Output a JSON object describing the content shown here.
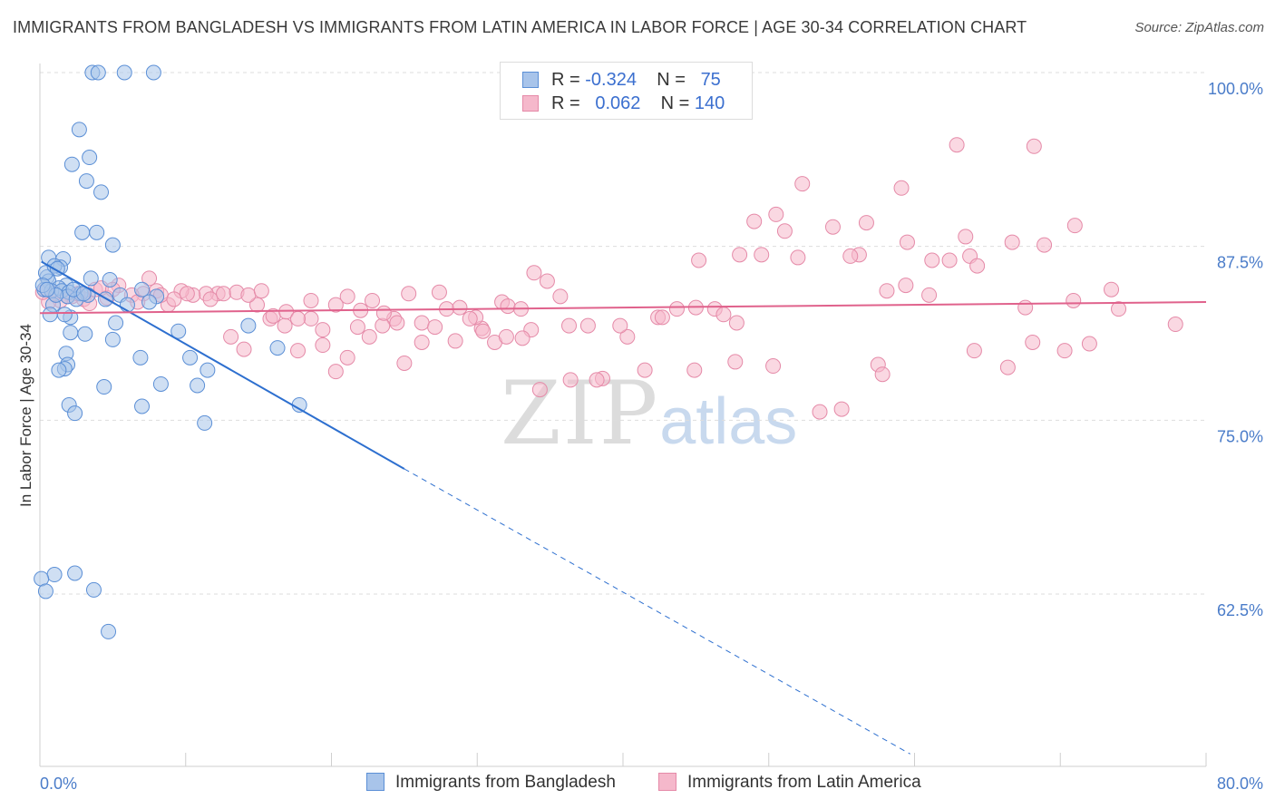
{
  "title": "IMMIGRANTS FROM BANGLADESH VS IMMIGRANTS FROM LATIN AMERICA IN LABOR FORCE | AGE 30-34 CORRELATION CHART",
  "source": "Source: ZipAtlas.com",
  "watermark": {
    "zip": "ZIP",
    "atlas": "atlas"
  },
  "legend": {
    "rows": [
      {
        "r_label": "R =",
        "r_value": "-0.324",
        "n_label": "N =",
        "n_value": "75"
      },
      {
        "r_label": "R =",
        "r_value": "0.062",
        "n_label": "N =",
        "n_value": "140"
      }
    ]
  },
  "colors": {
    "blue_fill": "#a8c4ea",
    "blue_stroke": "#5b8fd6",
    "blue_line": "#2d6fcf",
    "pink_fill": "#f5b8cb",
    "pink_stroke": "#e58aa8",
    "pink_line": "#e0628c",
    "grid": "#dddddd",
    "tick_text": "#4a7cc9"
  },
  "chart_data": {
    "type": "scatter",
    "title": "IMMIGRANTS FROM BANGLADESH VS IMMIGRANTS FROM LATIN AMERICA IN LABOR FORCE | AGE 30-34 CORRELATION CHART",
    "xlabel": "",
    "ylabel": "In Labor Force | Age 30-34",
    "xlim": [
      0,
      80
    ],
    "ylim": [
      50,
      102
    ],
    "x_tick_labels": [
      "0.0%",
      "80.0%"
    ],
    "y_ticks": [
      62.5,
      75.0,
      87.5,
      100.0
    ],
    "y_tick_labels": [
      "62.5%",
      "75.0%",
      "87.5%",
      "100.0%"
    ],
    "grid": true,
    "series": [
      {
        "name": "Immigrants from Bangladesh",
        "color": "#a8c4ea",
        "r": -0.324,
        "n": 75,
        "trend": {
          "x0": 0.1,
          "y0": 86.4,
          "x1": 25,
          "y1": 71.5,
          "dashed_to_x": 59.7,
          "dashed_to_y": 51
        },
        "x": [
          3.6,
          4.0,
          5.8,
          7.8,
          2.7,
          3.4,
          2.2,
          3.2,
          4.2,
          2.9,
          3.9,
          5.0,
          1.6,
          1.4,
          0.5,
          0.6,
          1.8,
          1.3,
          0.3,
          0.4,
          0.6,
          1.0,
          1.2,
          0.8,
          1.5,
          2.0,
          2.8,
          3.3,
          5.5,
          7.0,
          8.0,
          1.9,
          2.5,
          4.5,
          6.0,
          7.5,
          0.9,
          1.1,
          2.3,
          3.0,
          3.5,
          4.8,
          0.2,
          0.5,
          0.7,
          2.1,
          1.7,
          5.2,
          9.5,
          14.3,
          16.3,
          3.1,
          2.1,
          1.8,
          1.9,
          6.9,
          1.7,
          1.3,
          2.0,
          2.4,
          4.4,
          7.0,
          8.3,
          10.3,
          11.5,
          10.8,
          11.3,
          1.0,
          2.4,
          3.7,
          4.7,
          5.0,
          17.8,
          0.1,
          0.4
        ],
        "y": [
          100.0,
          100.0,
          100.0,
          100.0,
          95.9,
          93.9,
          93.4,
          92.2,
          91.4,
          88.5,
          88.5,
          87.6,
          86.6,
          86.0,
          85.3,
          85.0,
          84.7,
          84.5,
          84.4,
          85.6,
          86.7,
          86.1,
          85.9,
          84.3,
          84.3,
          84.2,
          84.1,
          84.0,
          84.0,
          84.4,
          83.9,
          83.9,
          83.7,
          83.7,
          83.3,
          83.5,
          83.3,
          84.0,
          84.4,
          84.1,
          85.2,
          85.1,
          84.7,
          84.4,
          82.6,
          82.4,
          82.6,
          82.0,
          81.4,
          81.8,
          80.2,
          81.2,
          81.3,
          79.8,
          79.0,
          79.5,
          78.7,
          78.6,
          76.1,
          75.5,
          77.4,
          76.0,
          77.6,
          79.5,
          78.6,
          77.5,
          74.8,
          63.9,
          64.0,
          62.8,
          59.8,
          80.8,
          76.1,
          63.6,
          62.7
        ]
      },
      {
        "name": "Immigrants from Latin America",
        "color": "#f5b8cb",
        "r": 0.062,
        "n": 140,
        "trend": {
          "x0": 0,
          "y0": 82.7,
          "x1": 80,
          "y1": 83.5
        },
        "x": [
          62.9,
          68.2,
          52.3,
          59.1,
          50.5,
          49.0,
          71.0,
          56.7,
          54.4,
          51.1,
          63.5,
          59.5,
          66.7,
          68.9,
          63.8,
          56.2,
          55.6,
          61.2,
          62.4,
          45.2,
          48.0,
          52.0,
          49.5,
          45.0,
          64.3,
          58.1,
          59.4,
          61.0,
          70.9,
          74.0,
          73.5,
          77.9,
          72.0,
          68.1,
          66.4,
          67.6,
          70.3,
          64.1,
          57.5,
          57.8,
          55.0,
          53.5,
          50.3,
          47.7,
          44.9,
          41.5,
          38.6,
          36.4,
          34.3,
          38.2,
          40.3,
          37.6,
          42.4,
          43.7,
          46.3,
          46.9,
          47.8,
          42.7,
          39.8,
          36.3,
          33.7,
          31.7,
          32.1,
          33.1,
          30.3,
          29.9,
          28.5,
          27.4,
          26.2,
          25.0,
          24.3,
          23.5,
          22.6,
          21.8,
          21.1,
          20.3,
          19.4,
          18.6,
          17.7,
          16.8,
          15.8,
          14.9,
          14.0,
          13.1,
          12.2,
          11.4,
          10.5,
          9.7,
          8.8,
          8.0,
          7.1,
          6.3,
          5.4,
          4.6,
          3.8,
          3.0,
          2.2,
          1.4,
          0.6,
          0.2,
          1.0,
          1.9,
          2.6,
          3.4,
          4.2,
          5.0,
          6.7,
          7.5,
          8.3,
          9.2,
          10.1,
          11.7,
          12.6,
          13.5,
          14.3,
          15.2,
          16.0,
          16.9,
          17.7,
          18.6,
          19.4,
          20.3,
          21.1,
          22.0,
          22.8,
          23.6,
          24.5,
          25.3,
          26.2,
          27.1,
          27.9,
          28.8,
          29.5,
          30.4,
          31.2,
          32.0,
          33.0,
          33.9,
          34.8,
          35.7
        ],
        "y": [
          94.8,
          94.7,
          92.0,
          91.7,
          89.8,
          89.3,
          89.0,
          89.2,
          88.9,
          88.6,
          88.2,
          87.8,
          87.8,
          87.6,
          86.8,
          86.9,
          86.8,
          86.5,
          86.5,
          86.5,
          86.9,
          86.7,
          86.9,
          83.1,
          86.1,
          84.3,
          84.7,
          84.0,
          83.6,
          83.0,
          84.4,
          81.9,
          80.5,
          80.6,
          78.8,
          83.1,
          80.0,
          80.0,
          79.0,
          78.3,
          75.8,
          75.6,
          78.9,
          79.2,
          78.6,
          78.6,
          78.0,
          77.9,
          77.2,
          77.9,
          81.0,
          81.8,
          82.4,
          83.0,
          83.0,
          82.6,
          82.0,
          82.4,
          81.8,
          81.8,
          81.5,
          83.5,
          83.2,
          80.9,
          81.6,
          82.4,
          80.7,
          84.2,
          80.6,
          79.1,
          82.3,
          81.8,
          81.0,
          81.7,
          79.5,
          78.5,
          80.4,
          82.3,
          80.0,
          81.8,
          82.3,
          83.3,
          80.1,
          81.0,
          84.1,
          84.1,
          84.0,
          84.3,
          83.3,
          84.3,
          84.1,
          84.0,
          84.7,
          83.8,
          84.4,
          83.7,
          83.9,
          83.6,
          83.5,
          84.2,
          84.1,
          83.9,
          84.1,
          83.4,
          84.5,
          84.4,
          83.5,
          85.2,
          84.0,
          83.7,
          84.1,
          83.7,
          84.1,
          84.2,
          84.0,
          84.3,
          82.5,
          82.8,
          82.3,
          83.6,
          81.5,
          83.3,
          83.9,
          82.9,
          83.6,
          82.7,
          82.0,
          84.1,
          82.0,
          81.7,
          83.0,
          83.1,
          82.3,
          81.4,
          80.6,
          81.0,
          83.0,
          85.6,
          85.0,
          83.9
        ]
      }
    ]
  },
  "bottom_legend": [
    {
      "label": "Immigrants from Bangladesh"
    },
    {
      "label": "Immigrants from Latin America"
    }
  ]
}
